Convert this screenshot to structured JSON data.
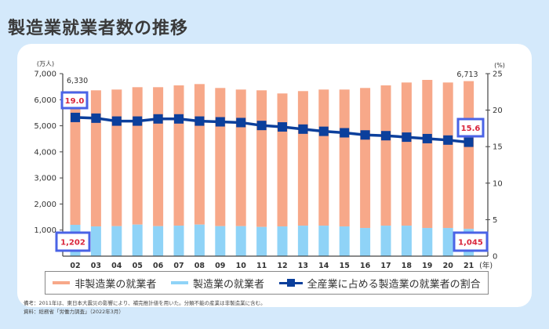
{
  "title": "製造業就業者数の推移",
  "chart_data": {
    "type": "bar",
    "stacked": true,
    "categories": [
      "02",
      "03",
      "04",
      "05",
      "06",
      "07",
      "08",
      "09",
      "10",
      "11",
      "12",
      "13",
      "14",
      "15",
      "16",
      "17",
      "18",
      "19",
      "20",
      "21"
    ],
    "x_unit": "(年)",
    "y_left": {
      "unit": "(万人)",
      "ylim": [
        0,
        7000
      ],
      "ticks": [
        "1,000",
        "2,000",
        "3,000",
        "4,000",
        "5,000",
        "6,000",
        "7,000"
      ]
    },
    "y_right": {
      "unit": "(%)",
      "ylim": [
        0,
        25
      ],
      "ticks": [
        "0",
        "5",
        "10",
        "15",
        "20",
        "25"
      ]
    },
    "series": [
      {
        "name": "製造業の就業者",
        "type": "bar",
        "axis": "left",
        "color": "#8fd3f7",
        "values": [
          1202,
          1140,
          1150,
          1210,
          1150,
          1170,
          1210,
          1150,
          1150,
          1120,
          1140,
          1170,
          1170,
          1140,
          1080,
          1170,
          1170,
          1080,
          1080,
          1045
        ]
      },
      {
        "name": "非製造業の就業者",
        "type": "bar",
        "axis": "left",
        "color": "#f7a889",
        "values": [
          5128,
          5220,
          5240,
          5270,
          5330,
          5380,
          5390,
          5300,
          5240,
          5240,
          5100,
          5160,
          5220,
          5250,
          5370,
          5380,
          5490,
          5680,
          5580,
          5668
        ]
      },
      {
        "name": "全産業に占める製造業の就業者の割合",
        "type": "line",
        "axis": "right",
        "color": "#0b3f9c",
        "values": [
          19.0,
          18.9,
          18.5,
          18.5,
          18.8,
          18.8,
          18.5,
          18.4,
          18.3,
          17.9,
          17.7,
          17.4,
          17.1,
          16.9,
          16.6,
          16.5,
          16.3,
          16.1,
          15.9,
          15.6
        ]
      }
    ],
    "annotations": {
      "total_first": "6,330",
      "total_last": "6,713",
      "ratio_first": "19.0",
      "ratio_last": "15.6",
      "mfg_first": "1,202",
      "mfg_last": "1,045"
    },
    "legend_position": "bottom",
    "grid": false
  },
  "notes": {
    "remark": "備考：2011年は、東日本大震災の影響により、補完推計値を用いた。分類不能の産業は非製造業に含む。",
    "source": "資料：総務省「労働力調査」（2022年3月）"
  },
  "colors": {
    "highlight_box": "#4a63e6",
    "highlight_text": "#d9253b"
  }
}
